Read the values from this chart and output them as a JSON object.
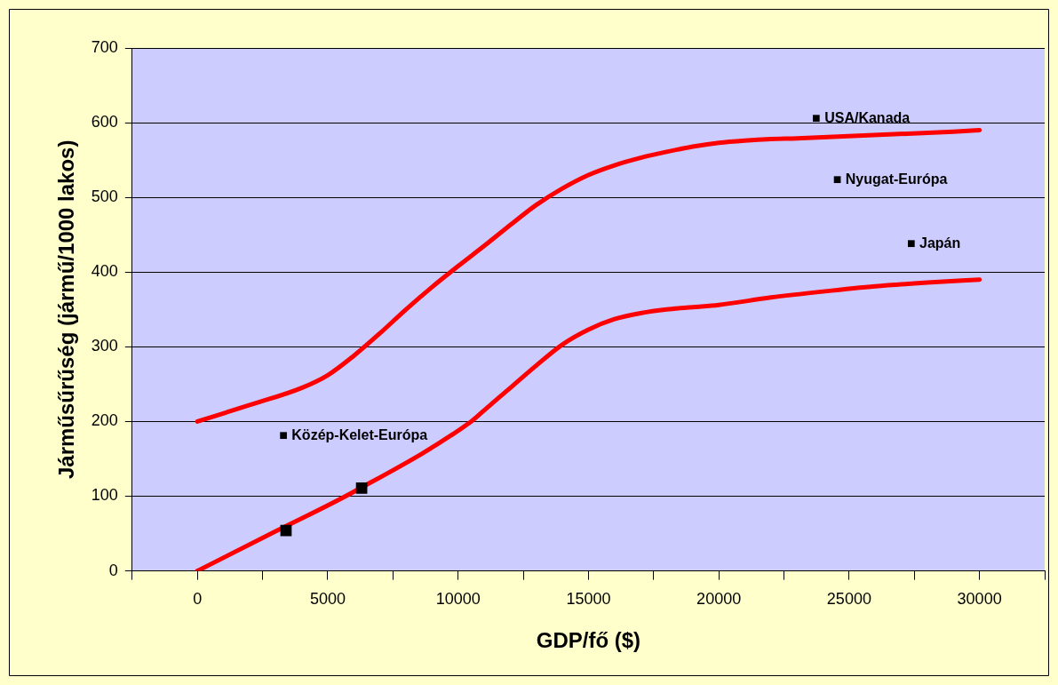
{
  "chart_data": {
    "type": "line",
    "xlabel": "GDP/fő ($)",
    "ylabel": "Járműsűrűség (jármű/1000 lakos)",
    "xlim": [
      -2500,
      32500
    ],
    "xticks": [
      {
        "value": -2500,
        "label": null
      },
      0,
      {
        "value": 2500,
        "label": null
      },
      5000,
      {
        "value": 7500,
        "label": null
      },
      10000,
      {
        "value": 12500,
        "label": null
      },
      15000,
      {
        "value": 17500,
        "label": null
      },
      20000,
      {
        "value": 22500,
        "label": null
      },
      25000,
      {
        "value": 27500,
        "label": null
      },
      30000,
      {
        "value": 32500,
        "label": null
      }
    ],
    "ylim": [
      0,
      700
    ],
    "yticks": [
      0,
      100,
      200,
      300,
      400,
      500,
      600,
      700
    ],
    "grid": "y",
    "legend": false,
    "series": [
      {
        "color": "#ff0000",
        "marker": "none",
        "x": [
          0,
          2000,
          4000,
          5000,
          6000,
          7000,
          8000,
          9000,
          10000,
          11000,
          12000,
          13000,
          14000,
          15000,
          16000,
          17000,
          18000,
          19000,
          20000,
          21000,
          22000,
          23000,
          29000,
          30000
        ],
        "values": [
          200,
          222,
          245,
          262,
          288,
          318,
          350,
          380,
          408,
          435,
          463,
          490,
          512,
          530,
          543,
          553,
          561,
          568,
          573,
          576,
          578,
          579,
          588,
          590
        ]
      },
      {
        "color": "#ff0000",
        "marker": "none",
        "x": [
          0,
          3000,
          6000,
          10500,
          11000,
          12000,
          13000,
          14000,
          15000,
          16000,
          17000,
          18000,
          19000,
          20000,
          22000,
          24000,
          26000,
          28000,
          30000
        ],
        "values": [
          0,
          53,
          106,
          200,
          215,
          245,
          275,
          303,
          323,
          337,
          345,
          350,
          353,
          356,
          366,
          374,
          381,
          386,
          390
        ]
      },
      {
        "type": "scatter",
        "color": "#000000",
        "marker": "square",
        "x": [
          3400,
          6300
        ],
        "values": [
          54,
          111
        ]
      }
    ],
    "annotations": [
      "■ USA/Kanada",
      "■ Nyugat-Európa",
      "■ Japán",
      "■ Közép-Kelet-Európa"
    ]
  }
}
